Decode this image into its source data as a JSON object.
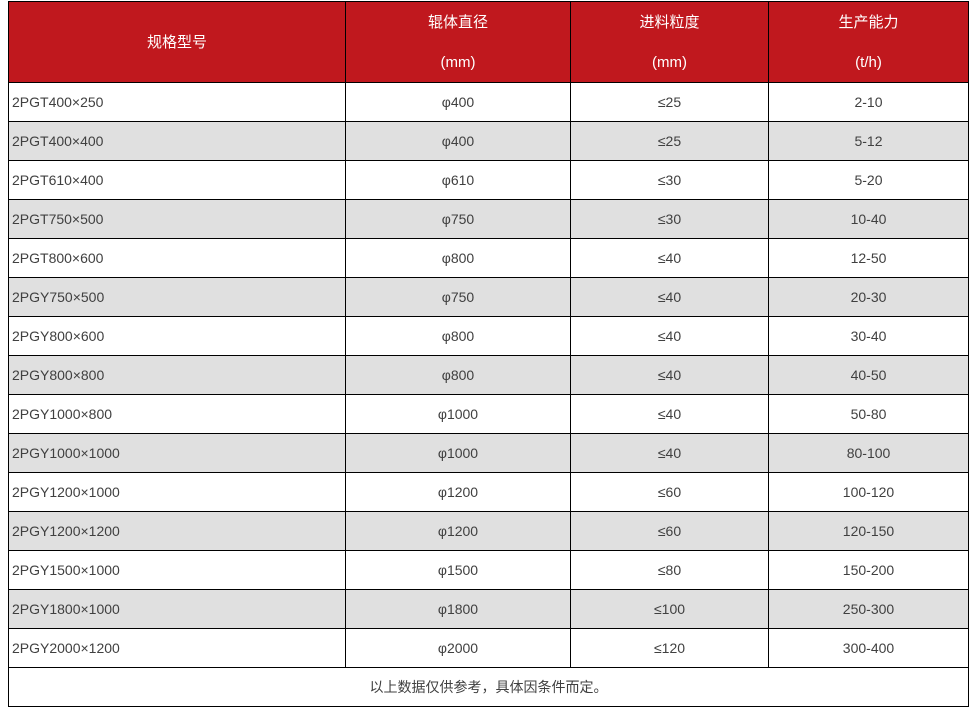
{
  "chart_data": {
    "type": "table",
    "title": "",
    "header": [
      {
        "title": "规格型号",
        "unit": ""
      },
      {
        "title": "辊体直径",
        "unit": "(mm)"
      },
      {
        "title": "进料粒度",
        "unit": "(mm)"
      },
      {
        "title": "生产能力",
        "unit": "(t/h)"
      }
    ],
    "rows": [
      [
        "2PGT400×250",
        "φ400",
        "≤25",
        "2-10"
      ],
      [
        "2PGT400×400",
        "φ400",
        "≤25",
        "5-12"
      ],
      [
        "2PGT610×400",
        "φ610",
        "≤30",
        "5-20"
      ],
      [
        "2PGT750×500",
        "φ750",
        "≤30",
        "10-40"
      ],
      [
        "2PGT800×600",
        "φ800",
        "≤40",
        "12-50"
      ],
      [
        "2PGY750×500",
        "φ750",
        "≤40",
        "20-30"
      ],
      [
        "2PGY800×600",
        "φ800",
        "≤40",
        "30-40"
      ],
      [
        "2PGY800×800",
        "φ800",
        "≤40",
        "40-50"
      ],
      [
        "2PGY1000×800",
        "φ1000",
        "≤40",
        "50-80"
      ],
      [
        "2PGY1000×1000",
        "φ1000",
        "≤40",
        "80-100"
      ],
      [
        "2PGY1200×1000",
        "φ1200",
        "≤60",
        "100-120"
      ],
      [
        "2PGY1200×1200",
        "φ1200",
        "≤60",
        "120-150"
      ],
      [
        "2PGY1500×1000",
        "φ1500",
        "≤80",
        "150-200"
      ],
      [
        "2PGY1800×1000",
        "φ1800",
        "≤100",
        "250-300"
      ],
      [
        "2PGY2000×1200",
        "φ2000",
        "≤120",
        "300-400"
      ]
    ],
    "footnote": "以上数据仅供参考，具体因条件而定。"
  },
  "colors": {
    "header_bg": "#c0181e",
    "header_text": "#ffffff",
    "row_alt_bg": "#e0e0e0",
    "border": "#000000",
    "body_text": "#404040"
  }
}
